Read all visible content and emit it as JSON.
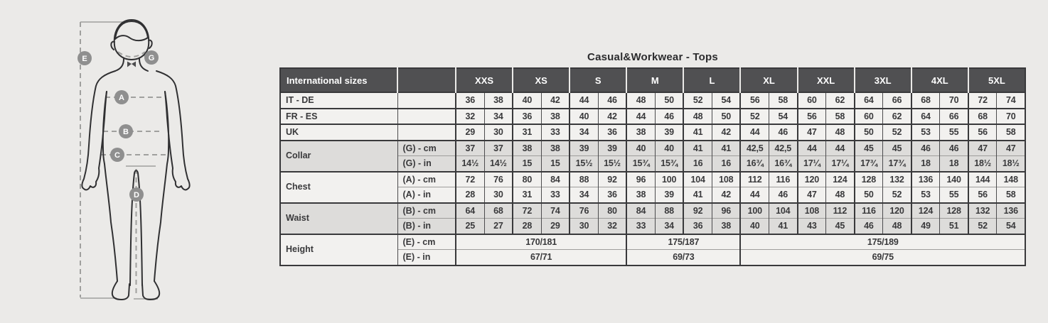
{
  "title": "Casual&Workwear - Tops",
  "diagram": {
    "markers": [
      "E",
      "G",
      "A",
      "B",
      "C",
      "D"
    ]
  },
  "table": {
    "header": {
      "corner": "International sizes",
      "blank": "",
      "sizes": [
        "XXS",
        "XS",
        "S",
        "M",
        "L",
        "XL",
        "XXL",
        "3XL",
        "4XL",
        "5XL"
      ]
    },
    "groups": [
      {
        "label": "IT - DE",
        "shade": "light",
        "rows": [
          {
            "sub": "",
            "cells": [
              "36",
              "38",
              "40",
              "42",
              "44",
              "46",
              "48",
              "50",
              "52",
              "54",
              "56",
              "58",
              "60",
              "62",
              "64",
              "66",
              "68",
              "70",
              "72",
              "74"
            ]
          }
        ]
      },
      {
        "label": "FR - ES",
        "shade": "light",
        "rows": [
          {
            "sub": "",
            "cells": [
              "32",
              "34",
              "36",
              "38",
              "40",
              "42",
              "44",
              "46",
              "48",
              "50",
              "52",
              "54",
              "56",
              "58",
              "60",
              "62",
              "64",
              "66",
              "68",
              "70"
            ]
          }
        ]
      },
      {
        "label": "UK",
        "shade": "light",
        "rows": [
          {
            "sub": "",
            "cells": [
              "29",
              "30",
              "31",
              "33",
              "34",
              "36",
              "38",
              "39",
              "41",
              "42",
              "44",
              "46",
              "47",
              "48",
              "50",
              "52",
              "53",
              "55",
              "56",
              "58"
            ]
          }
        ]
      },
      {
        "label": "Collar",
        "shade": "gray",
        "rows": [
          {
            "sub": "(G) - cm",
            "cells": [
              "37",
              "37",
              "38",
              "38",
              "39",
              "39",
              "40",
              "40",
              "41",
              "41",
              "42,5",
              "42,5",
              "44",
              "44",
              "45",
              "45",
              "46",
              "46",
              "47",
              "47"
            ]
          },
          {
            "sub": "(G)  - in",
            "cells": [
              "14½",
              "14½",
              "15",
              "15",
              "15½",
              "15½",
              "15¾",
              "15¾",
              "16",
              "16",
              "16¾",
              "16¾",
              "17¼",
              "17¼",
              "17¾",
              "17¾",
              "18",
              "18",
              "18½",
              "18½"
            ]
          }
        ]
      },
      {
        "label": "Chest",
        "shade": "light",
        "rows": [
          {
            "sub": "(A) - cm",
            "cells": [
              "72",
              "76",
              "80",
              "84",
              "88",
              "92",
              "96",
              "100",
              "104",
              "108",
              "112",
              "116",
              "120",
              "124",
              "128",
              "132",
              "136",
              "140",
              "144",
              "148"
            ]
          },
          {
            "sub": "(A) - in",
            "cells": [
              "28",
              "30",
              "31",
              "33",
              "34",
              "36",
              "38",
              "39",
              "41",
              "42",
              "44",
              "46",
              "47",
              "48",
              "50",
              "52",
              "53",
              "55",
              "56",
              "58"
            ]
          }
        ]
      },
      {
        "label": "Waist",
        "shade": "gray",
        "rows": [
          {
            "sub": "(B) - cm",
            "cells": [
              "64",
              "68",
              "72",
              "74",
              "76",
              "80",
              "84",
              "88",
              "92",
              "96",
              "100",
              "104",
              "108",
              "112",
              "116",
              "120",
              "124",
              "128",
              "132",
              "136"
            ]
          },
          {
            "sub": "(B) - in",
            "cells": [
              "25",
              "27",
              "28",
              "29",
              "30",
              "32",
              "33",
              "34",
              "36",
              "38",
              "40",
              "41",
              "43",
              "45",
              "46",
              "48",
              "49",
              "51",
              "52",
              "54"
            ]
          }
        ]
      },
      {
        "label": "Height",
        "shade": "light",
        "rows": [
          {
            "sub": "(E) - cm",
            "spans": [
              {
                "text": "170/181",
                "cols": 6
              },
              {
                "text": "175/187",
                "cols": 4
              },
              {
                "text": "175/189",
                "cols": 10
              }
            ]
          },
          {
            "sub": "(E) - in",
            "spans": [
              {
                "text": "67/71",
                "cols": 6
              },
              {
                "text": "69/73",
                "cols": 4
              },
              {
                "text": "69/75",
                "cols": 10
              }
            ]
          }
        ]
      }
    ]
  },
  "colors": {
    "page_bg": "#ebeae8",
    "header_bg": "#505052",
    "header_text": "#ffffff",
    "row_light": "#f2f1ef",
    "row_gray": "#dddcda",
    "border_dark": "#39393b",
    "border_mid": "#4c4c4e",
    "border_soft": "#9e9d9b",
    "text": "#39393b",
    "figure_stroke": "#303032",
    "guide_gray": "#a0a09e",
    "badge_gray": "#8f8f8f"
  }
}
